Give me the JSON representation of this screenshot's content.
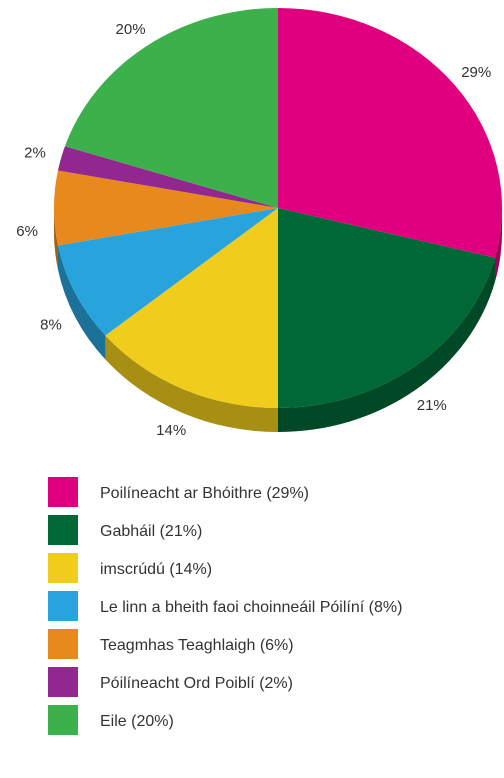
{
  "chart_data": {
    "type": "pie",
    "categories": [
      "Poilíneacht ar Bhóithre (29%)",
      "Gabháil (21%)",
      "imscrúdú (14%)",
      "Le linn a bheith faoi choinneáil Póilíní (8%)",
      "Teagmhas Teaghlaigh (6%)",
      "Póilíneacht Ord Poiblí (2%)",
      "Eile (20%)"
    ],
    "values": [
      29,
      21,
      14,
      8,
      6,
      2,
      20
    ],
    "value_labels": [
      "29%",
      "21%",
      "14%",
      "8%",
      "6%",
      "2%",
      "20%"
    ],
    "colors": [
      "#e0007f",
      "#006837",
      "#f0cd1c",
      "#29a3dc",
      "#e8891e",
      "#92278f",
      "#3cb04a"
    ]
  }
}
